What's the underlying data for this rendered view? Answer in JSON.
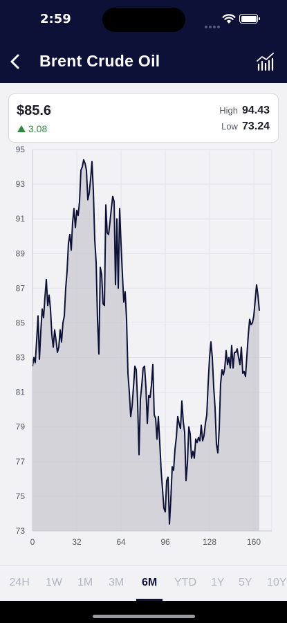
{
  "status": {
    "time": "2:59"
  },
  "header": {
    "title": "Brent Crude Oil"
  },
  "quote": {
    "price": "$85.6",
    "change": "3.08",
    "high_label": "High",
    "high_value": "94.43",
    "low_label": "Low",
    "low_value": "73.24",
    "change_color": "#2e8b3d"
  },
  "ranges": [
    "24H",
    "1W",
    "1M",
    "3M",
    "6M",
    "YTD",
    "1Y",
    "5Y",
    "10Y"
  ],
  "selected_range": "6M",
  "colors": {
    "navy": "#0d1137",
    "fill": "#c8c8d0",
    "line": "#0d1137"
  },
  "chart_data": {
    "type": "area",
    "title": "",
    "xlabel": "",
    "ylabel": "",
    "xlim": [
      0,
      173
    ],
    "ylim": [
      73,
      95
    ],
    "x_ticks": [
      0,
      32,
      64,
      96,
      128,
      160
    ],
    "y_ticks": [
      73,
      75,
      77,
      79,
      81,
      83,
      85,
      87,
      89,
      91,
      93,
      95
    ],
    "grid": true,
    "series": [
      {
        "values": [
          [
            0,
            82.5
          ],
          [
            1,
            83
          ],
          [
            2,
            82.7
          ],
          [
            3,
            84
          ],
          [
            4,
            85.4
          ],
          [
            5,
            82.9
          ],
          [
            6,
            84.5
          ],
          [
            7,
            85.8
          ],
          [
            8,
            85.3
          ],
          [
            9,
            86.5
          ],
          [
            10,
            87.5
          ],
          [
            11,
            86
          ],
          [
            12,
            86.6
          ],
          [
            13,
            85.8
          ],
          [
            14,
            84.3
          ],
          [
            15,
            83.6
          ],
          [
            16,
            84.6
          ],
          [
            17,
            84
          ],
          [
            18,
            83.3
          ],
          [
            19,
            83.6
          ],
          [
            20,
            84.6
          ],
          [
            21,
            83.9
          ],
          [
            22,
            85
          ],
          [
            23,
            85.4
          ],
          [
            24,
            87
          ],
          [
            25,
            88
          ],
          [
            26,
            89.6
          ],
          [
            27,
            90.1
          ],
          [
            28,
            89.2
          ],
          [
            29,
            90.8
          ],
          [
            30,
            91.6
          ],
          [
            31,
            90.5
          ],
          [
            32,
            91.5
          ],
          [
            33,
            91.2
          ],
          [
            34,
            92
          ],
          [
            35,
            93.8
          ],
          [
            36,
            94
          ],
          [
            37,
            94.4
          ],
          [
            38,
            94.2
          ],
          [
            39,
            93.8
          ],
          [
            40,
            92.1
          ],
          [
            41,
            92.5
          ],
          [
            42,
            93.3
          ],
          [
            43,
            94.3
          ],
          [
            44,
            92.6
          ],
          [
            45,
            89.8
          ],
          [
            46,
            88.5
          ],
          [
            47,
            85.2
          ],
          [
            48,
            83.2
          ],
          [
            49,
            88.2
          ],
          [
            50,
            87.8
          ],
          [
            51,
            86.1
          ],
          [
            52,
            86
          ],
          [
            53,
            91.8
          ],
          [
            54,
            90.2
          ],
          [
            55,
            90.1
          ],
          [
            56,
            90.8
          ],
          [
            57,
            91.6
          ],
          [
            58,
            92.3
          ],
          [
            59,
            92
          ],
          [
            60,
            87.2
          ],
          [
            61,
            91
          ],
          [
            62,
            87
          ],
          [
            63,
            91.6
          ],
          [
            64,
            89.6
          ],
          [
            65,
            87.8
          ],
          [
            66,
            86.2
          ],
          [
            67,
            86.8
          ],
          [
            68,
            85.2
          ],
          [
            69,
            82.1
          ],
          [
            70,
            81
          ],
          [
            71,
            79.6
          ],
          [
            72,
            80.2
          ],
          [
            73,
            81.3
          ],
          [
            74,
            82.5
          ],
          [
            75,
            82.3
          ],
          [
            76,
            80.4
          ],
          [
            77,
            77.4
          ],
          [
            78,
            80.6
          ],
          [
            79,
            81.4
          ],
          [
            80,
            82.4
          ],
          [
            81,
            82.5
          ],
          [
            82,
            81.3
          ],
          [
            83,
            79.2
          ],
          [
            84,
            80.8
          ],
          [
            85,
            80.7
          ],
          [
            86,
            81.4
          ],
          [
            87,
            82.6
          ],
          [
            88,
            79.7
          ],
          [
            89,
            79.5
          ],
          [
            90,
            78.3
          ],
          [
            91,
            79.6
          ],
          [
            92,
            78.1
          ],
          [
            93,
            76.5
          ],
          [
            94,
            75.4
          ],
          [
            95,
            74.3
          ],
          [
            96,
            74.1
          ],
          [
            97,
            75.9
          ],
          [
            98,
            76.1
          ],
          [
            99,
            73.4
          ],
          [
            100,
            74.8
          ],
          [
            101,
            76.7
          ],
          [
            102,
            76.5
          ],
          [
            103,
            77.7
          ],
          [
            104,
            78.4
          ],
          [
            105,
            79.6
          ],
          [
            106,
            79.2
          ],
          [
            107,
            78.9
          ],
          [
            108,
            80.5
          ],
          [
            109,
            79.3
          ],
          [
            110,
            78.7
          ],
          [
            111,
            75.9
          ],
          [
            112,
            76.9
          ],
          [
            113,
            79
          ],
          [
            114,
            78.6
          ],
          [
            115,
            77.2
          ],
          [
            116,
            77.6
          ],
          [
            117,
            77.2
          ],
          [
            118,
            78.3
          ],
          [
            119,
            78.1
          ],
          [
            120,
            78.4
          ],
          [
            121,
            78.2
          ],
          [
            122,
            79.1
          ],
          [
            123,
            78.2
          ],
          [
            124,
            78.5
          ],
          [
            125,
            79.2
          ],
          [
            126,
            79.7
          ],
          [
            127,
            81.5
          ],
          [
            128,
            83
          ],
          [
            129,
            83.9
          ],
          [
            130,
            83
          ],
          [
            131,
            81.3
          ],
          [
            132,
            80.1
          ],
          [
            133,
            78
          ],
          [
            134,
            77.5
          ],
          [
            135,
            78.9
          ],
          [
            136,
            81.5
          ],
          [
            137,
            82.3
          ],
          [
            138,
            82
          ],
          [
            139,
            82.4
          ],
          [
            140,
            83.4
          ],
          [
            141,
            82.6
          ],
          [
            142,
            83
          ],
          [
            143,
            82.4
          ],
          [
            144,
            83.7
          ],
          [
            145,
            82.4
          ],
          [
            146,
            83.3
          ],
          [
            147,
            83.3
          ],
          [
            148,
            83.5
          ],
          [
            149,
            83
          ],
          [
            150,
            82.6
          ],
          [
            151,
            83.6
          ],
          [
            152,
            82.1
          ],
          [
            153,
            82.2
          ],
          [
            154,
            81.9
          ],
          [
            155,
            83.1
          ],
          [
            156,
            84.3
          ],
          [
            157,
            85.2
          ],
          [
            158,
            84.9
          ],
          [
            159,
            85
          ],
          [
            160,
            85.4
          ],
          [
            161,
            86.3
          ],
          [
            162,
            87.2
          ],
          [
            163,
            86.6
          ],
          [
            164,
            85.7
          ]
        ]
      }
    ]
  }
}
